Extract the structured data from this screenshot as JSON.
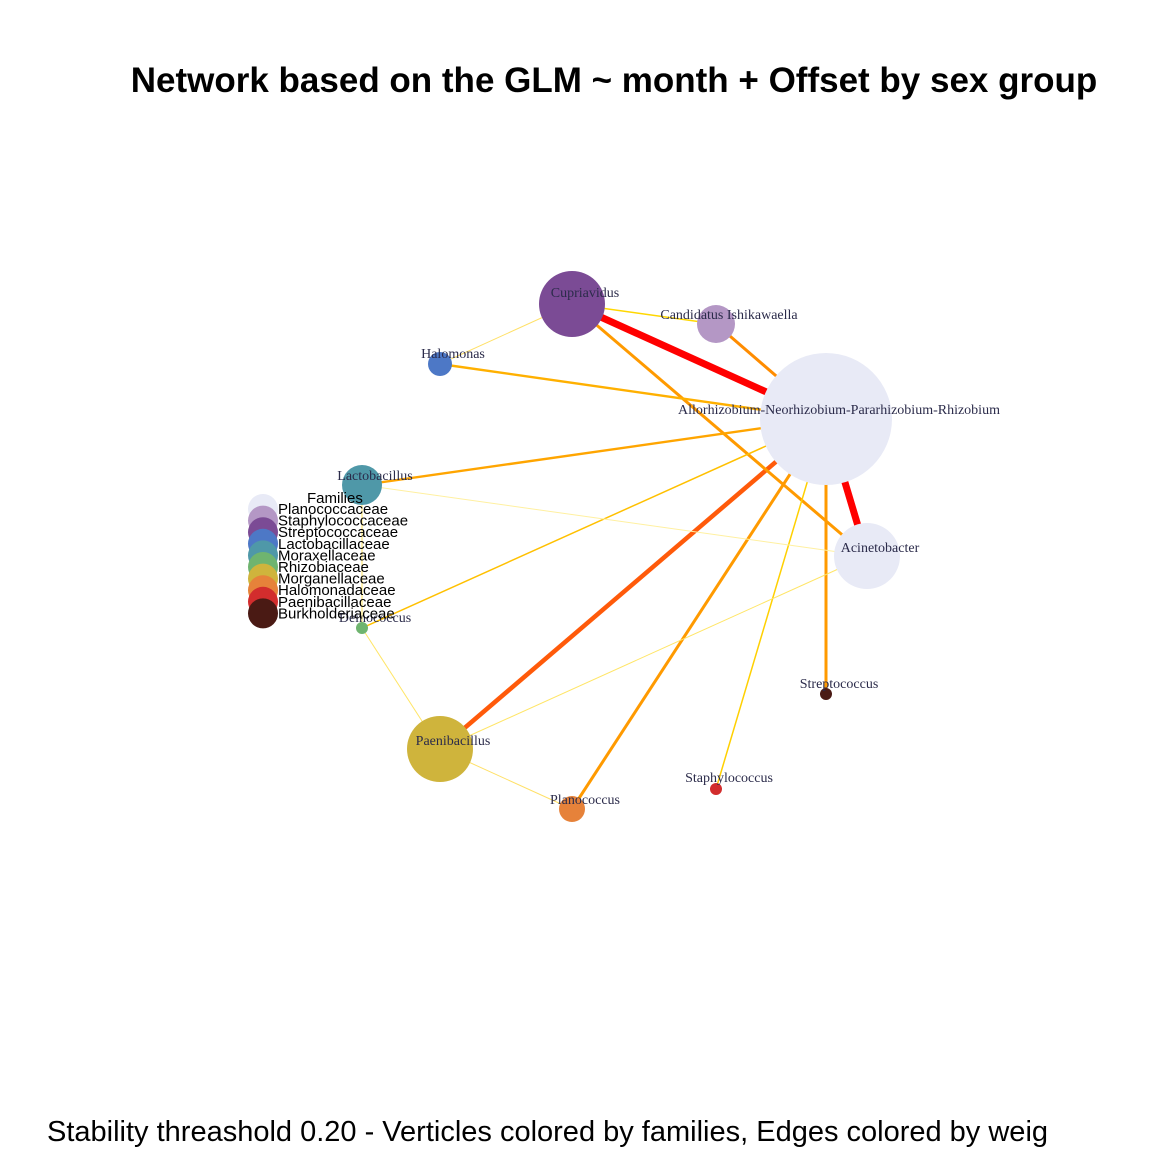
{
  "title": "Network based on the GLM ~ month + Offset by sex group",
  "caption": "Stability threashold 0.20 - Verticles colored by families, Edges colored by weig",
  "legend": {
    "title": "Families",
    "items": [
      {
        "label": "Planococcaceae",
        "color": "#e8eaf6"
      },
      {
        "label": "Staphylococcaceae",
        "color": "#b497c5"
      },
      {
        "label": "Streptococcaceae",
        "color": "#7b4b95"
      },
      {
        "label": "Lactobacillaceae",
        "color": "#4d78c6"
      },
      {
        "label": "Moraxellaceae",
        "color": "#4f98a8"
      },
      {
        "label": "Rhizobiaceae",
        "color": "#6fb46f"
      },
      {
        "label": "Morganellaceae",
        "color": "#cfb43c"
      },
      {
        "label": "Halomonadaceae",
        "color": "#e6823a"
      },
      {
        "label": "Paenibacillaceae",
        "color": "#d22d2d"
      },
      {
        "label": "Burkholderiaceae",
        "color": "#4a1a14"
      }
    ]
  },
  "nodes": [
    {
      "id": "cupriavidus",
      "label": "Cupriavidus",
      "color": "#7b4b95"
    },
    {
      "id": "candidatus",
      "label": "Candidatus Ishikawaella",
      "color": "#b497c5"
    },
    {
      "id": "halomonas",
      "label": "Halomonas",
      "color": "#4d78c6"
    },
    {
      "id": "rhizobium",
      "label": "Allorhizobium-Neorhizobium-Pararhizobium-Rhizobium",
      "color": "#e8eaf6"
    },
    {
      "id": "lactobacillus",
      "label": "Lactobacillus",
      "color": "#4f98a8"
    },
    {
      "id": "acinetobacter",
      "label": "Acinetobacter",
      "color": "#e8eaf6"
    },
    {
      "id": "unknown",
      "label": "Deinococcus",
      "color": "#6fb46f"
    },
    {
      "id": "streptococcus",
      "label": "Streptococcus",
      "color": "#4a1a14"
    },
    {
      "id": "paenibacillus",
      "label": "Paenibacillus",
      "color": "#cfb43c"
    },
    {
      "id": "staphylococcus",
      "label": "Staphylococcus",
      "color": "#d22d2d"
    },
    {
      "id": "planococcus",
      "label": "Planococcus",
      "color": "#e6823a"
    }
  ],
  "edges": [
    {
      "from": "cupriavidus",
      "to": "rhizobium",
      "color": "#ff0000",
      "strength": "strong"
    },
    {
      "from": "rhizobium",
      "to": "acinetobacter",
      "color": "#ff0000",
      "strength": "strong"
    },
    {
      "from": "rhizobium",
      "to": "paenibacillus",
      "color": "#ff5a0a",
      "strength": "medium-strong"
    },
    {
      "from": "candidatus",
      "to": "rhizobium",
      "color": "#ff8c00",
      "strength": "medium"
    },
    {
      "from": "cupriavidus",
      "to": "acinetobacter",
      "color": "#ff9a00",
      "strength": "medium"
    },
    {
      "from": "rhizobium",
      "to": "planococcus",
      "color": "#ff9a00",
      "strength": "medium"
    },
    {
      "from": "rhizobium",
      "to": "streptococcus",
      "color": "#ff9a00",
      "strength": "medium"
    },
    {
      "from": "lactobacillus",
      "to": "rhizobium",
      "color": "#ffa500",
      "strength": "weak-medium"
    },
    {
      "from": "halomonas",
      "to": "rhizobium",
      "color": "#ffb000",
      "strength": "weak-medium"
    },
    {
      "from": "unknown",
      "to": "rhizobium",
      "color": "#ffc000",
      "strength": "weak"
    },
    {
      "from": "staphylococcus",
      "to": "rhizobium",
      "color": "#ffd000",
      "strength": "weak"
    },
    {
      "from": "cupriavidus",
      "to": "candidatus",
      "color": "#ffd700",
      "strength": "weak"
    },
    {
      "from": "halomonas",
      "to": "cupriavidus",
      "color": "#ffe066",
      "strength": "faint"
    },
    {
      "from": "lactobacillus",
      "to": "acinetobacter",
      "color": "#fff0a0",
      "strength": "faint"
    },
    {
      "from": "paenibacillus",
      "to": "acinetobacter",
      "color": "#ffe566",
      "strength": "faint"
    },
    {
      "from": "paenibacillus",
      "to": "planococcus",
      "color": "#ffe066",
      "strength": "faint"
    },
    {
      "from": "unknown",
      "to": "paenibacillus",
      "color": "#ffe566",
      "strength": "faint"
    },
    {
      "from": "lactobacillus",
      "to": "unknown",
      "color": "#ffe566",
      "strength": "faint"
    }
  ]
}
